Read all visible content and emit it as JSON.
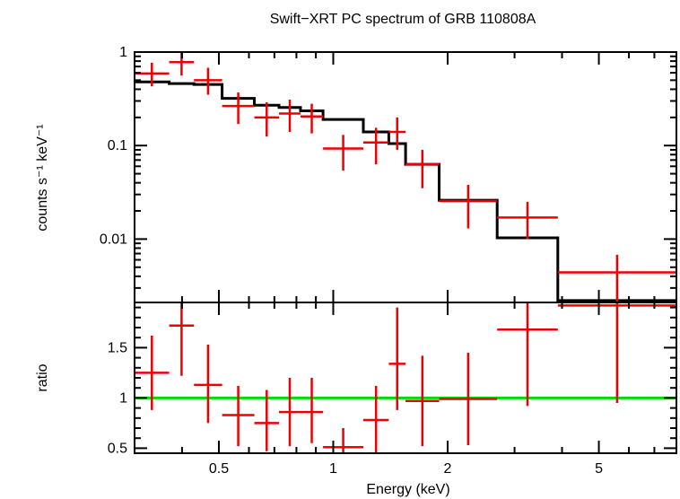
{
  "chart_data": {
    "title": "Swift−XRT PC spectrum of GRB 110808A",
    "xlabel": "Energy (keV)",
    "x_scale": "log",
    "xlim": [
      0.3,
      8.0
    ],
    "x_tick_labels": [
      "0.5",
      "1",
      "2",
      "5"
    ],
    "x_ticks_major": [
      0.5,
      1,
      2,
      5
    ],
    "x_ticks_minor": [
      0.3,
      0.4,
      0.6,
      0.7,
      0.8,
      0.9,
      3,
      4,
      6,
      7,
      8
    ],
    "panels": [
      {
        "type": "step+errorbar",
        "ylabel": "counts s⁻¹ keV⁻¹",
        "y_scale": "log",
        "ylim": [
          0.0021,
          1.0
        ],
        "y_tick_labels": [
          "1",
          "0.1",
          "0.01"
        ],
        "y_ticks_major": [
          1,
          0.1,
          0.01
        ],
        "data": [
          {
            "xlo": 0.3,
            "xhi": 0.37,
            "y": 0.59,
            "ylo": 0.43,
            "yhi": 0.77
          },
          {
            "xlo": 0.37,
            "xhi": 0.43,
            "y": 0.78,
            "ylo": 0.56,
            "yhi": 1.0
          },
          {
            "xlo": 0.43,
            "xhi": 0.51,
            "y": 0.5,
            "ylo": 0.35,
            "yhi": 0.68
          },
          {
            "xlo": 0.51,
            "xhi": 0.62,
            "y": 0.265,
            "ylo": 0.17,
            "yhi": 0.37
          },
          {
            "xlo": 0.62,
            "xhi": 0.72,
            "y": 0.2,
            "ylo": 0.125,
            "yhi": 0.29
          },
          {
            "xlo": 0.72,
            "xhi": 0.82,
            "y": 0.22,
            "ylo": 0.14,
            "yhi": 0.31
          },
          {
            "xlo": 0.82,
            "xhi": 0.94,
            "y": 0.205,
            "ylo": 0.135,
            "yhi": 0.28
          },
          {
            "xlo": 0.94,
            "xhi": 1.2,
            "y": 0.093,
            "ylo": 0.054,
            "yhi": 0.13
          },
          {
            "xlo": 1.2,
            "xhi": 1.4,
            "y": 0.108,
            "ylo": 0.063,
            "yhi": 0.155
          },
          {
            "xlo": 1.4,
            "xhi": 1.55,
            "y": 0.14,
            "ylo": 0.09,
            "yhi": 0.2
          },
          {
            "xlo": 1.55,
            "xhi": 1.9,
            "y": 0.063,
            "ylo": 0.035,
            "yhi": 0.09
          },
          {
            "xlo": 1.9,
            "xhi": 2.7,
            "y": 0.0255,
            "ylo": 0.013,
            "yhi": 0.038
          },
          {
            "xlo": 2.7,
            "xhi": 3.9,
            "y": 0.017,
            "ylo": 0.01,
            "yhi": 0.025
          },
          {
            "xlo": 3.9,
            "xhi": 8.0,
            "y": 0.0044,
            "ylo": 0.0021,
            "yhi": 0.0068
          }
        ],
        "model_steps": [
          {
            "xlo": 0.3,
            "xhi": 0.37,
            "y": 0.48
          },
          {
            "xlo": 0.37,
            "xhi": 0.43,
            "y": 0.46
          },
          {
            "xlo": 0.43,
            "xhi": 0.51,
            "y": 0.45
          },
          {
            "xlo": 0.51,
            "xhi": 0.62,
            "y": 0.32
          },
          {
            "xlo": 0.62,
            "xhi": 0.72,
            "y": 0.27
          },
          {
            "xlo": 0.72,
            "xhi": 0.82,
            "y": 0.255
          },
          {
            "xlo": 0.82,
            "xhi": 0.94,
            "y": 0.235
          },
          {
            "xlo": 0.94,
            "xhi": 1.2,
            "y": 0.19
          },
          {
            "xlo": 1.2,
            "xhi": 1.4,
            "y": 0.14
          },
          {
            "xlo": 1.4,
            "xhi": 1.55,
            "y": 0.105
          },
          {
            "xlo": 1.55,
            "xhi": 1.9,
            "y": 0.063
          },
          {
            "xlo": 1.9,
            "xhi": 2.7,
            "y": 0.026
          },
          {
            "xlo": 2.7,
            "xhi": 3.9,
            "y": 0.0103
          },
          {
            "xlo": 3.9,
            "xhi": 8.0,
            "y": 0.0022
          }
        ]
      },
      {
        "type": "errorbar",
        "ylabel": "ratio",
        "y_scale": "linear",
        "ylim": [
          0.45,
          1.95
        ],
        "y_tick_labels": [
          "0.5",
          "1",
          "1.5"
        ],
        "y_ticks_major": [
          0.5,
          1.0,
          1.5
        ],
        "y_ticks_minor": [
          0.6,
          0.7,
          0.8,
          0.9,
          1.1,
          1.2,
          1.3,
          1.4,
          1.6,
          1.7,
          1.8,
          1.9
        ],
        "reference_line": 1.0,
        "data": [
          {
            "xlo": 0.3,
            "xhi": 0.37,
            "y": 1.25,
            "ylo": 0.88,
            "yhi": 1.62
          },
          {
            "xlo": 0.37,
            "xhi": 0.43,
            "y": 1.72,
            "ylo": 1.22,
            "yhi": 2.05
          },
          {
            "xlo": 0.43,
            "xhi": 0.51,
            "y": 1.13,
            "ylo": 0.75,
            "yhi": 1.53
          },
          {
            "xlo": 0.51,
            "xhi": 0.62,
            "y": 0.83,
            "ylo": 0.52,
            "yhi": 1.12
          },
          {
            "xlo": 0.62,
            "xhi": 0.72,
            "y": 0.75,
            "ylo": 0.47,
            "yhi": 1.08
          },
          {
            "xlo": 0.72,
            "xhi": 0.82,
            "y": 0.86,
            "ylo": 0.52,
            "yhi": 1.2
          },
          {
            "xlo": 0.82,
            "xhi": 0.94,
            "y": 0.86,
            "ylo": 0.55,
            "yhi": 1.2
          },
          {
            "xlo": 0.94,
            "xhi": 1.2,
            "y": 0.51,
            "ylo": 0.45,
            "yhi": 0.7
          },
          {
            "xlo": 1.2,
            "xhi": 1.4,
            "y": 0.78,
            "ylo": 0.45,
            "yhi": 1.12
          },
          {
            "xlo": 1.4,
            "xhi": 1.55,
            "y": 1.34,
            "ylo": 0.88,
            "yhi": 1.9
          },
          {
            "xlo": 1.55,
            "xhi": 1.9,
            "y": 0.97,
            "ylo": 0.52,
            "yhi": 1.42
          },
          {
            "xlo": 1.9,
            "xhi": 2.7,
            "y": 0.99,
            "ylo": 0.53,
            "yhi": 1.45
          },
          {
            "xlo": 2.7,
            "xhi": 3.9,
            "y": 1.68,
            "ylo": 0.92,
            "yhi": 2.05
          },
          {
            "xlo": 3.9,
            "xhi": 8.0,
            "y": 1.92,
            "ylo": 0.95,
            "yhi": 2.05
          }
        ]
      }
    ],
    "colors": {
      "data": "#ee0000",
      "model": "#000000",
      "reference": "#00dd00",
      "axes": "#000000"
    }
  }
}
